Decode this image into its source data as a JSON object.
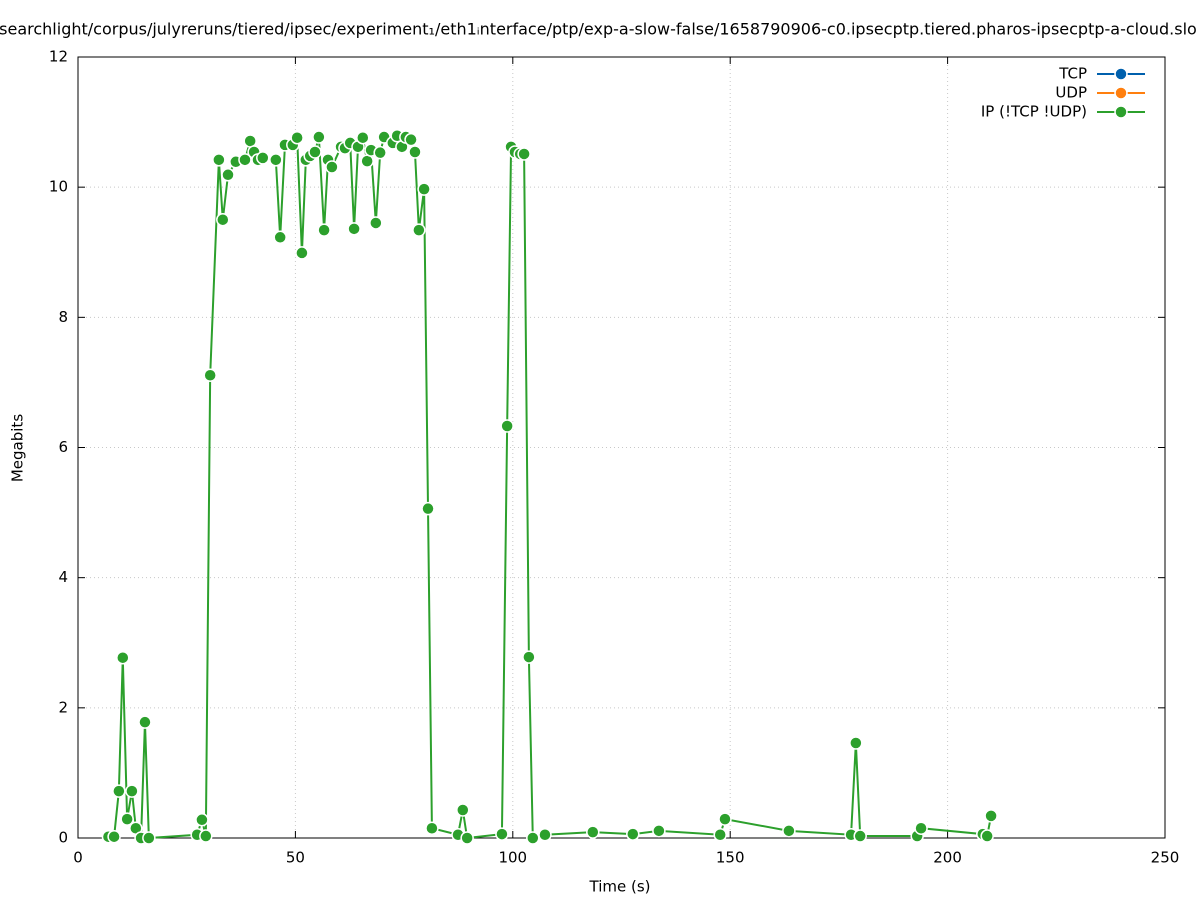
{
  "chart_data": {
    "type": "line",
    "title": "searchlight/corpus/julyreruns/tiered/ipsec/experiment₁/eth1ᵢnterface/ptp/exp-a-slow-false/1658790906-c0.ipsecptp.tiered.pharos-ipsecptp-a-cloud.slo",
    "xlabel": "Time (s)",
    "ylabel": "Megabits",
    "xlim": [
      0,
      250
    ],
    "xticks": [
      0,
      50,
      100,
      150,
      200,
      250
    ],
    "ylim": [
      0,
      12
    ],
    "yticks": [
      0,
      2,
      4,
      6,
      8,
      10,
      12
    ],
    "grid": true,
    "legend": "upper right",
    "series": [
      {
        "name": "TCP",
        "color": "#0060ad",
        "x": [],
        "values": []
      },
      {
        "name": "UDP",
        "color": "#ff7f0e",
        "x": [],
        "values": []
      },
      {
        "name": "IP (!TCP  !UDP)",
        "color": "#2ca02c",
        "x": [
          7,
          8.3,
          9.4,
          10.3,
          11.3,
          12.4,
          13.3,
          14.5,
          15.4,
          16.3,
          27.4,
          28.5,
          29.4,
          30.4,
          32.4,
          33.3,
          34.5,
          36.3,
          38.4,
          39.6,
          40.5,
          41.4,
          42.5,
          45.5,
          46.5,
          47.6,
          49.4,
          50.4,
          51.5,
          52.4,
          53.4,
          54.5,
          55.4,
          56.6,
          57.5,
          58.4,
          60.5,
          61.4,
          62.6,
          63.5,
          64.4,
          65.5,
          66.5,
          67.4,
          68.5,
          69.5,
          70.4,
          72.4,
          73.4,
          74.5,
          75.4,
          76.6,
          77.5,
          78.4,
          79.6,
          80.5,
          81.4,
          87.4,
          88.5,
          89.5,
          97.5,
          98.7,
          99.6,
          100.5,
          101.7,
          102.6,
          103.7,
          104.6,
          107.4,
          118.4,
          127.6,
          133.6,
          147.7,
          148.8,
          163.5,
          177.8,
          178.9,
          179.9,
          193.0,
          193.9,
          208.1,
          209.1,
          210.0
        ],
        "values": [
          0.02,
          0.02,
          0.72,
          2.77,
          0.29,
          0.72,
          0.15,
          0.0,
          1.78,
          0.0,
          0.05,
          0.28,
          0.03,
          7.11,
          10.42,
          9.5,
          10.19,
          10.39,
          10.42,
          10.71,
          10.54,
          10.42,
          10.45,
          10.42,
          9.23,
          10.65,
          10.65,
          10.76,
          8.99,
          10.42,
          10.48,
          10.54,
          10.77,
          9.34,
          10.42,
          10.31,
          10.62,
          10.6,
          10.68,
          9.36,
          10.62,
          10.76,
          10.4,
          10.57,
          9.45,
          10.53,
          10.77,
          10.68,
          10.79,
          10.62,
          10.77,
          10.73,
          10.54,
          9.34,
          9.97,
          5.06,
          0.15,
          0.05,
          0.43,
          0.0,
          0.06,
          6.33,
          10.62,
          10.54,
          10.51,
          10.51,
          2.78,
          0.0,
          0.05,
          0.09,
          0.06,
          0.11,
          0.05,
          0.29,
          0.11,
          0.05,
          1.46,
          0.03,
          0.03,
          0.15,
          0.06,
          0.03,
          0.34
        ]
      }
    ]
  }
}
